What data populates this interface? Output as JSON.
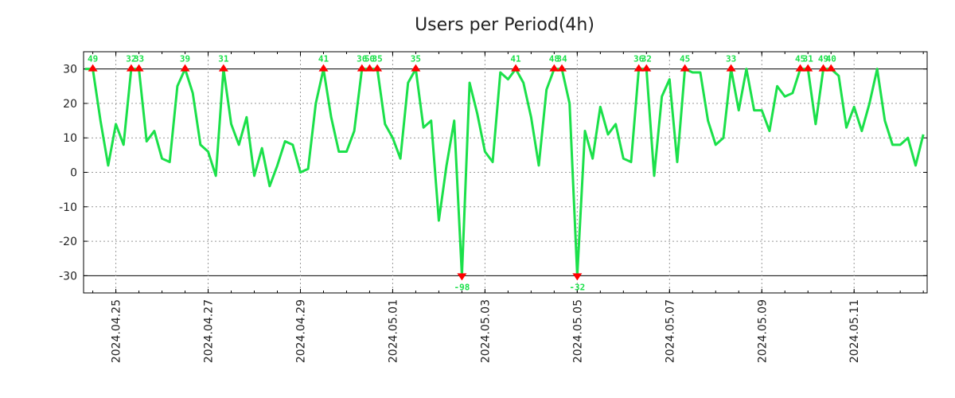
{
  "chart_data": {
    "type": "line",
    "title": "Users per Period(4h)",
    "xlabel": "",
    "ylabel": "",
    "ylim": [
      -35,
      35
    ],
    "clip_range": [
      -30,
      30
    ],
    "xlim": [
      -0.2,
      109.5
    ],
    "yticks": [
      30,
      20,
      10,
      0,
      -10,
      -20,
      -30
    ],
    "xticks": [
      {
        "index": 4,
        "label": "2024.04.25"
      },
      {
        "index": 16,
        "label": "2024.04.27"
      },
      {
        "index": 28,
        "label": "2024.04.29"
      },
      {
        "index": 40,
        "label": "2024.05.01"
      },
      {
        "index": 52,
        "label": "2024.05.03"
      },
      {
        "index": 64,
        "label": "2024.05.05"
      },
      {
        "index": 76,
        "label": "2024.05.07"
      },
      {
        "index": 88,
        "label": "2024.05.09"
      },
      {
        "index": 100,
        "label": "2024.05.11"
      }
    ],
    "grid": true,
    "line_color": "#1be04a",
    "marker_color": "#ff0000",
    "series": [
      {
        "name": "Users",
        "values": [
          30,
          49,
          15,
          2,
          14,
          8,
          32,
          33,
          9,
          12,
          4,
          3,
          25,
          39,
          23,
          8,
          6,
          -1,
          31,
          14,
          8,
          16,
          -1,
          7,
          -4,
          2,
          9,
          8,
          0,
          1,
          20,
          41,
          16,
          6,
          6,
          12,
          36,
          50,
          35,
          14,
          10,
          4,
          26,
          35,
          13,
          15,
          -14,
          2,
          15,
          -98,
          26,
          17,
          6,
          3,
          29,
          27,
          41,
          26,
          16,
          2,
          24,
          48,
          34,
          20,
          -32,
          12,
          4,
          19,
          11,
          14,
          4,
          3,
          36,
          32,
          -1,
          22,
          27,
          3,
          45,
          29,
          29,
          15,
          8,
          10,
          33,
          18,
          30,
          18,
          18,
          12,
          25,
          22,
          23,
          45,
          31,
          14,
          49,
          40,
          28,
          13,
          19,
          12,
          20,
          30,
          15,
          8,
          8,
          10,
          2,
          11
        ]
      }
    ]
  }
}
